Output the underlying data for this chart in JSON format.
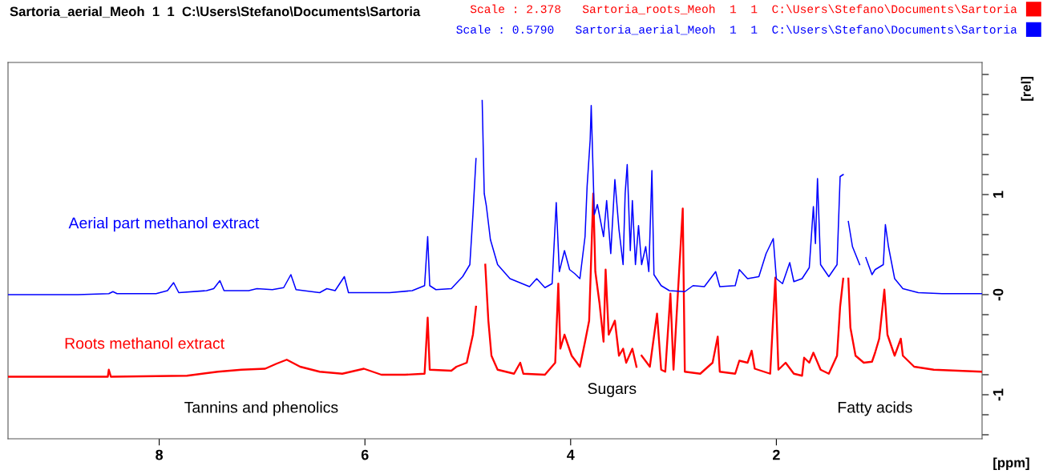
{
  "chart_data": {
    "type": "line",
    "title": "Sartoria_aerial_Meoh  1  1  C:\\Users\\Stefano\\Documents\\Sartoria",
    "xlabel": "[ppm]",
    "ylabel": "[rel]",
    "xlim": [
      9.47,
      0.0
    ],
    "xticks": [
      8,
      6,
      4,
      2
    ],
    "ylim": [
      -1.44,
      2.32
    ],
    "yticks": [
      {
        "value": -1.4,
        "label": null
      },
      {
        "value": -1.2,
        "label": null
      },
      -1,
      {
        "value": -0.8,
        "label": null
      },
      {
        "value": -0.6,
        "label": null
      },
      {
        "value": -0.4,
        "label": null
      },
      {
        "value": -0.2,
        "label": null
      },
      {
        "value": 0,
        "label": "-0"
      },
      {
        "value": 0.2,
        "label": null
      },
      {
        "value": 0.4,
        "label": null
      },
      {
        "value": 0.6,
        "label": null
      },
      {
        "value": 0.8,
        "label": null
      },
      1,
      {
        "value": 1.2,
        "label": null
      },
      {
        "value": 1.4,
        "label": null
      },
      {
        "value": 1.6,
        "label": null
      },
      {
        "value": 1.8,
        "label": null
      },
      {
        "value": 2.0,
        "label": null
      },
      {
        "value": 2.2,
        "label": null
      }
    ],
    "grid": false,
    "legend": "top right",
    "line_style": "solid",
    "series": [
      {
        "name": "Scale : 0.5790   Sartoria_aerial_Meoh  1  1  C:\\Users\\Stefano\\Documents\\Sartoria",
        "color": "#0000ff",
        "x": [
          9.47,
          8.79,
          8.49,
          8.45,
          8.41,
          8.03,
          7.92,
          7.86,
          7.81,
          7.54,
          7.47,
          7.41,
          7.37,
          7.13,
          7.05,
          6.9,
          6.79,
          6.72,
          6.67,
          6.44,
          6.37,
          6.29,
          6.2,
          6.16,
          5.76,
          5.54,
          5.42,
          5.39,
          5.37,
          5.31,
          5.16,
          5.05,
          4.98,
          4.95,
          4.92,
          4.9,
          4.88,
          4.86,
          4.84,
          4.82,
          4.78,
          4.71,
          4.59,
          4.4,
          4.33,
          4.25,
          4.18,
          4.14,
          4.11,
          4.06,
          4.01,
          3.96,
          3.91,
          3.86,
          3.84,
          3.81,
          3.8,
          3.77,
          3.74,
          3.68,
          3.65,
          3.61,
          3.57,
          3.53,
          3.49,
          3.47,
          3.45,
          3.42,
          3.4,
          3.37,
          3.34,
          3.31,
          3.27,
          3.24,
          3.21,
          3.19,
          3.12,
          3.04,
          2.89,
          2.81,
          2.7,
          2.59,
          2.55,
          2.4,
          2.36,
          2.28,
          2.17,
          2.1,
          2.03,
          2.0,
          1.94,
          1.87,
          1.83,
          1.75,
          1.68,
          1.64,
          1.62,
          1.6,
          1.57,
          1.49,
          1.41,
          1.38,
          1.35,
          1.32,
          1.3,
          1.26,
          1.19,
          1.16,
          1.13,
          1.07,
          1.04,
          0.96,
          0.94,
          0.91,
          0.85,
          0.77,
          0.62,
          0.39,
          0.0
        ],
        "values": [
          0,
          0,
          0.01,
          0.03,
          0.01,
          0.01,
          0.04,
          0.12,
          0.02,
          0.04,
          0.06,
          0.14,
          0.04,
          0.04,
          0.06,
          0.05,
          0.07,
          0.2,
          0.05,
          0.02,
          0.06,
          0.04,
          0.18,
          0.02,
          0.02,
          0.04,
          0.09,
          0.58,
          0.09,
          0.05,
          0.06,
          0.18,
          0.3,
          0.8,
          1.36,
          null,
          null,
          1.94,
          1.01,
          0.89,
          0.55,
          0.3,
          0.16,
          0.08,
          0.16,
          0.07,
          0.11,
          0.92,
          0.23,
          0.44,
          0.25,
          0.21,
          0.16,
          0.58,
          1.08,
          1.55,
          1.89,
          0.8,
          0.9,
          0.58,
          0.94,
          0.41,
          1.15,
          0.65,
          0.3,
          1.01,
          1.3,
          0.44,
          0.94,
          0.3,
          0.69,
          0.3,
          0.48,
          0.23,
          1.24,
          0.2,
          0.09,
          0.04,
          0.03,
          0.09,
          0.08,
          0.23,
          0.08,
          0.09,
          0.25,
          0.16,
          0.18,
          0.41,
          0.56,
          0.16,
          0.11,
          0.32,
          0.13,
          0.16,
          0.27,
          0.88,
          0.51,
          1.16,
          0.3,
          0.18,
          0.3,
          1.18,
          1.2,
          null,
          0.73,
          0.48,
          0.3,
          null,
          0.37,
          0.2,
          0.25,
          0.3,
          0.7,
          0.48,
          0.16,
          0.06,
          0.02,
          0.01,
          0.01
        ]
      },
      {
        "name": "Scale : 2.378   Sartoria_roots_Meoh  1  1  C:\\Users\\Stefano\\Documents\\Sartoria",
        "color": "#ff0000",
        "x": [
          9.47,
          8.5,
          8.49,
          8.47,
          7.73,
          7.43,
          7.2,
          6.97,
          6.86,
          6.76,
          6.63,
          6.44,
          6.22,
          6.01,
          5.84,
          5.61,
          5.42,
          5.39,
          5.37,
          5.16,
          5.11,
          5.01,
          4.95,
          4.92,
          4.89,
          4.87,
          4.86,
          4.83,
          4.8,
          4.77,
          4.71,
          4.55,
          4.49,
          4.46,
          4.25,
          4.15,
          4.12,
          4.1,
          4.06,
          3.99,
          3.91,
          3.86,
          3.82,
          3.78,
          3.76,
          3.72,
          3.68,
          3.66,
          3.63,
          3.57,
          3.53,
          3.49,
          3.46,
          3.4,
          3.36,
          3.33,
          3.31,
          3.23,
          3.16,
          3.12,
          3.08,
          3.03,
          3.0,
          2.91,
          2.89,
          2.74,
          2.62,
          2.57,
          2.55,
          2.4,
          2.36,
          2.28,
          2.24,
          2.21,
          2.06,
          2.01,
          1.98,
          1.91,
          1.83,
          1.75,
          1.73,
          1.68,
          1.64,
          1.57,
          1.49,
          1.41,
          1.38,
          1.35,
          1.34,
          1.31,
          1.3,
          1.28,
          1.23,
          1.15,
          1.07,
          1.04,
          1.0,
          0.95,
          0.92,
          0.85,
          0.79,
          0.77,
          0.66,
          0.47,
          0.0
        ],
        "values": [
          -0.82,
          -0.82,
          -0.75,
          -0.82,
          -0.81,
          -0.77,
          -0.75,
          -0.74,
          -0.69,
          -0.65,
          -0.72,
          -0.77,
          -0.79,
          -0.74,
          -0.8,
          -0.8,
          -0.79,
          -0.23,
          -0.75,
          -0.76,
          -0.72,
          -0.68,
          -0.4,
          -0.12,
          null,
          null,
          null,
          0.3,
          -0.26,
          -0.61,
          -0.75,
          -0.79,
          -0.68,
          -0.79,
          -0.8,
          -0.68,
          0.11,
          -0.54,
          -0.4,
          -0.61,
          -0.72,
          -0.47,
          -0.26,
          1.01,
          0.23,
          -0.08,
          -0.47,
          0.25,
          -0.4,
          -0.26,
          -0.61,
          -0.54,
          -0.68,
          -0.54,
          -0.72,
          null,
          -0.61,
          -0.72,
          -0.19,
          -0.75,
          -0.77,
          0.01,
          -0.75,
          0.86,
          -0.77,
          -0.79,
          -0.68,
          -0.42,
          -0.77,
          -0.79,
          -0.66,
          -0.68,
          -0.56,
          -0.74,
          -0.79,
          0.17,
          -0.75,
          -0.68,
          -0.79,
          -0.81,
          -0.63,
          -0.68,
          -0.58,
          -0.75,
          -0.79,
          -0.61,
          -0.12,
          0.16,
          null,
          null,
          0.16,
          -0.33,
          -0.61,
          -0.68,
          -0.67,
          -0.58,
          -0.44,
          0.05,
          -0.4,
          -0.61,
          -0.44,
          -0.61,
          -0.72,
          -0.75,
          -0.77
        ]
      }
    ],
    "annotations": [
      "Aerial part methanol extract",
      "Roots methanol extract",
      "Tannins and phenolics",
      "Sugars",
      "Fatty acids"
    ]
  }
}
